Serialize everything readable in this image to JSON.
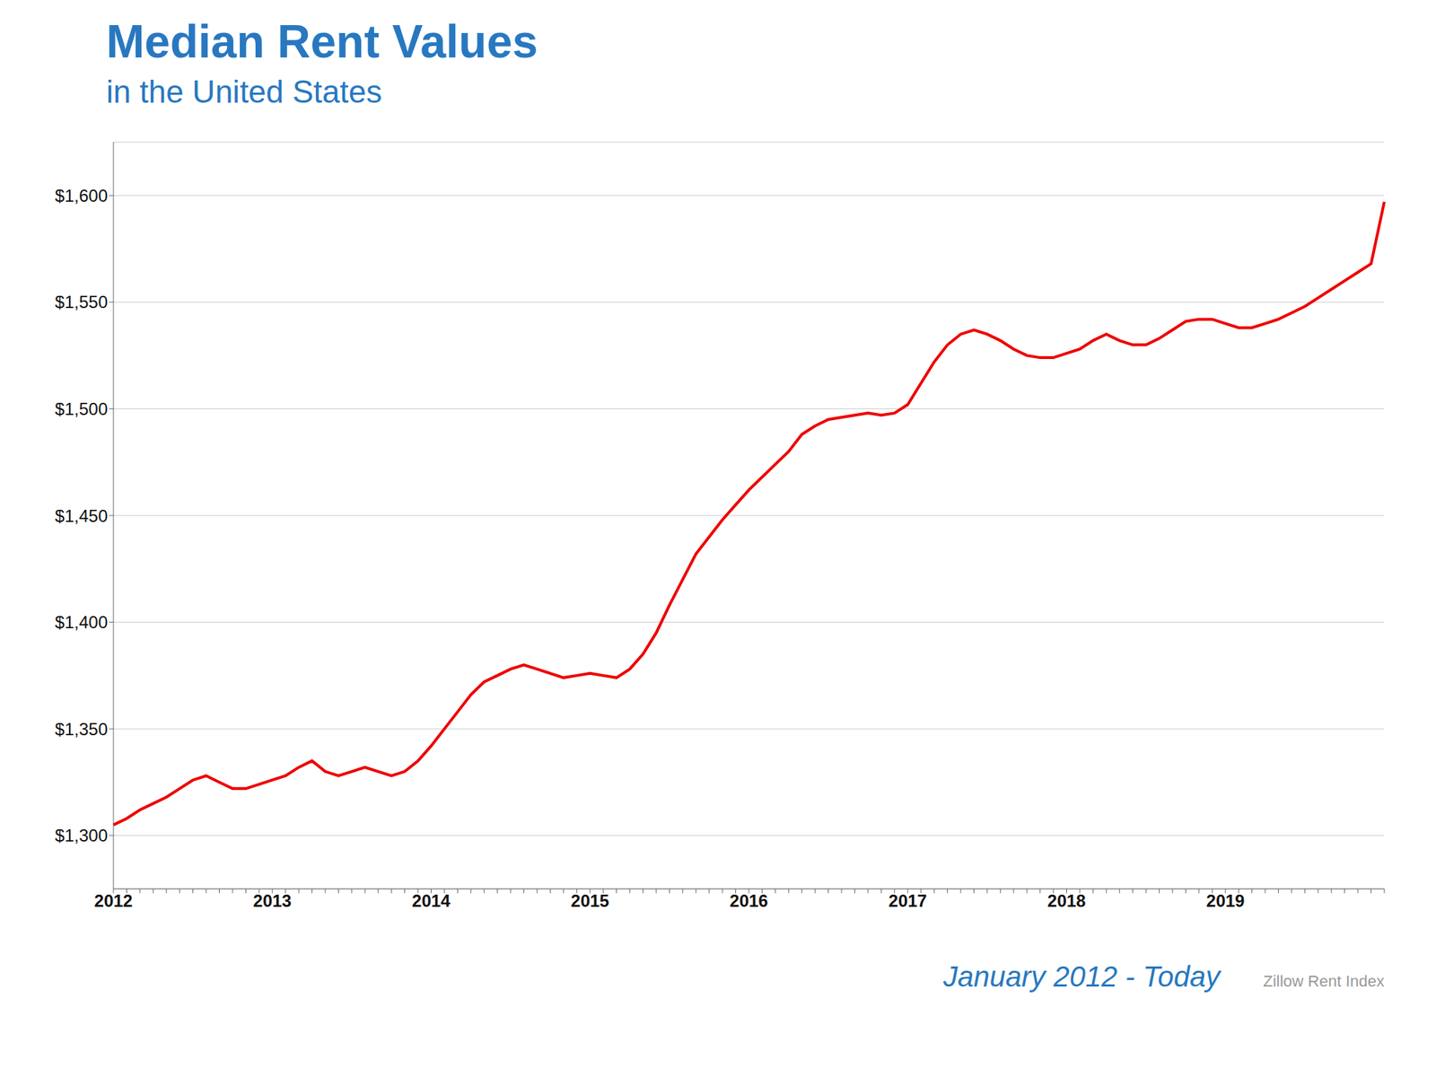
{
  "chart_data": {
    "type": "line",
    "title": "Median Rent Values",
    "subtitle": "in the United States",
    "annotations": [
      "January 2012 - Today",
      "Zillow Rent Index"
    ],
    "categories": [
      "2012",
      null,
      null,
      null,
      null,
      null,
      null,
      null,
      null,
      null,
      null,
      null,
      "2013",
      null,
      null,
      null,
      null,
      null,
      null,
      null,
      null,
      null,
      null,
      null,
      "2014",
      null,
      null,
      null,
      null,
      null,
      null,
      null,
      null,
      null,
      null,
      null,
      "2015",
      null,
      null,
      null,
      null,
      null,
      null,
      null,
      null,
      null,
      null,
      null,
      "2016",
      null,
      null,
      null,
      null,
      null,
      null,
      null,
      null,
      null,
      null,
      null,
      "2017",
      null,
      null,
      null,
      null,
      null,
      null,
      null,
      null,
      null,
      null,
      null,
      "2018",
      null,
      null,
      null,
      null,
      null,
      null,
      null,
      null,
      null,
      null,
      null,
      "2019",
      null,
      null,
      null,
      null,
      null,
      null,
      null,
      null,
      null,
      null,
      null,
      null
    ],
    "values": [
      1305,
      1308,
      1312,
      1315,
      1318,
      1322,
      1326,
      1328,
      1325,
      1322,
      1322,
      1324,
      1326,
      1328,
      1332,
      1335,
      1330,
      1328,
      1330,
      1332,
      1330,
      1328,
      1330,
      1335,
      1342,
      1350,
      1358,
      1366,
      1372,
      1375,
      1378,
      1380,
      1378,
      1376,
      1374,
      1375,
      1376,
      1375,
      1374,
      1378,
      1385,
      1395,
      1408,
      1420,
      1432,
      1440,
      1448,
      1455,
      1462,
      1468,
      1474,
      1480,
      1488,
      1492,
      1495,
      1496,
      1497,
      1498,
      1497,
      1498,
      1502,
      1512,
      1522,
      1530,
      1535,
      1537,
      1535,
      1532,
      1528,
      1525,
      1524,
      1524,
      1526,
      1528,
      1532,
      1535,
      1532,
      1530,
      1530,
      1533,
      1537,
      1541,
      1542,
      1542,
      1540,
      1538,
      1538,
      1540,
      1542,
      1545,
      1548,
      1552,
      1556,
      1560,
      1564,
      1568,
      1597
    ],
    "color": "#EE0000",
    "ylim": [
      1275,
      1625
    ],
    "yticks": [
      {
        "value": 1300,
        "label": "$1,300"
      },
      {
        "value": 1350,
        "label": "$1,350"
      },
      {
        "value": 1400,
        "label": "$1,400"
      },
      {
        "value": 1450,
        "label": "$1,450"
      },
      {
        "value": 1500,
        "label": "$1,500"
      },
      {
        "value": 1550,
        "label": "$1,550"
      },
      {
        "value": 1600,
        "label": "$1,600"
      }
    ],
    "grid": true
  }
}
